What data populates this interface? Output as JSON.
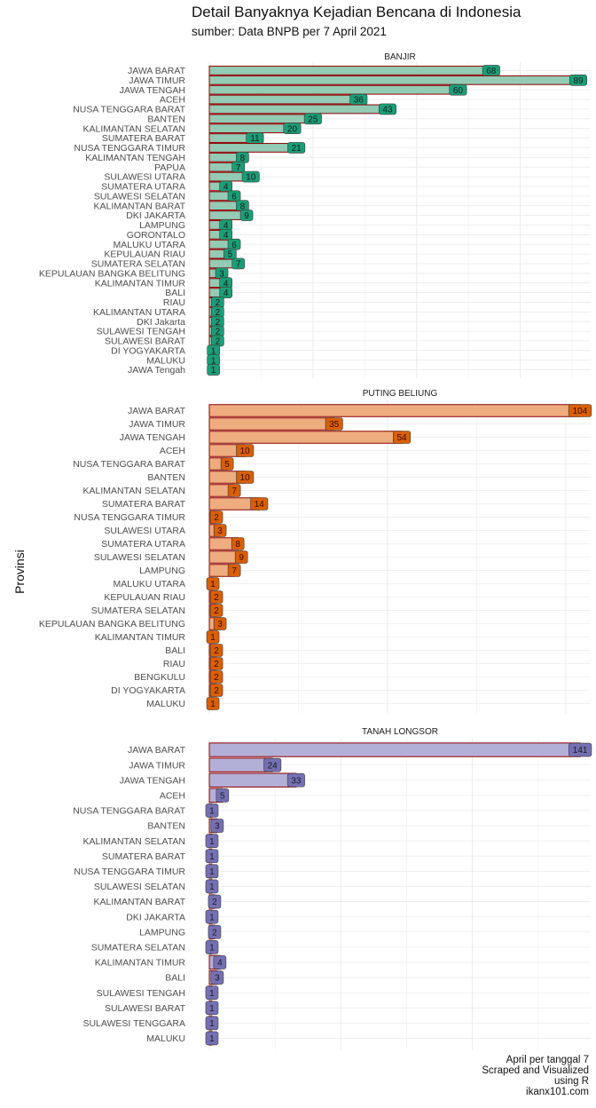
{
  "title": "Detail Banyaknya Kejadian Bencana di Indonesia",
  "subtitle": "sumber: Data BNPB per 7 April 2021",
  "y_axis_label": "Provinsi",
  "caption": [
    "April per tanggal 7",
    "Scraped and Visualized",
    "using R",
    "ikanx101.com"
  ],
  "colors": {
    "banjir_fill": "#93CBB4",
    "banjir_label": "#1B9E77",
    "banjir_text": "#1a1a1a",
    "puting_fill": "#EEAD7F",
    "puting_label": "#D95F02",
    "puting_text": "#3a0a00",
    "longsor_fill": "#B3B0D8",
    "longsor_label": "#7570B3",
    "longsor_text": "#1a1a1a",
    "bar_outline": "#8B0000",
    "grid": "#EBEBEB"
  },
  "chart_data": [
    {
      "type": "bar",
      "orientation": "horizontal",
      "title": "BANJIR",
      "xlabel": "",
      "ylabel": "Provinsi",
      "xlim": [
        0,
        92
      ],
      "categories": [
        "JAWA BARAT",
        "JAWA TIMUR",
        "JAWA TENGAH",
        "ACEH",
        "NUSA TENGGARA BARAT",
        "BANTEN",
        "KALIMANTAN SELATAN",
        "SUMATERA BARAT",
        "NUSA TENGGARA TIMUR",
        "KALIMANTAN TENGAH",
        "PAPUA",
        "SULAWESI UTARA",
        "SUMATERA UTARA",
        "SULAWESI SELATAN",
        "KALIMANTAN BARAT",
        "DKI JAKARTA",
        "LAMPUNG",
        "GORONTALO",
        "MALUKU UTARA",
        "KEPULAUAN RIAU",
        "SUMATERA SELATAN",
        "KEPULAUAN BANGKA BELITUNG",
        "KALIMANTAN TIMUR",
        "BALI",
        "RIAU",
        "KALIMANTAN UTARA",
        "DKI Jakarta",
        "SULAWESI TENGAH",
        "SULAWESI BARAT",
        "DI YOGYAKARTA",
        "MALUKU",
        "JAWA Tengah"
      ],
      "values": [
        68,
        89,
        60,
        36,
        43,
        25,
        20,
        11,
        21,
        8,
        7,
        10,
        4,
        6,
        8,
        9,
        4,
        4,
        6,
        5,
        7,
        3,
        4,
        4,
        2,
        2,
        2,
        2,
        2,
        1,
        1,
        1
      ]
    },
    {
      "type": "bar",
      "orientation": "horizontal",
      "title": "PUTING BELIUNG",
      "xlabel": "",
      "ylabel": "Provinsi",
      "xlim": [
        0,
        107
      ],
      "categories": [
        "JAWA BARAT",
        "JAWA TIMUR",
        "JAWA TENGAH",
        "ACEH",
        "NUSA TENGGARA BARAT",
        "BANTEN",
        "KALIMANTAN SELATAN",
        "SUMATERA BARAT",
        "NUSA TENGGARA TIMUR",
        "SULAWESI UTARA",
        "SUMATERA UTARA",
        "SULAWESI SELATAN",
        "LAMPUNG",
        "MALUKU UTARA",
        "KEPULAUAN RIAU",
        "SUMATERA SELATAN",
        "KEPULAUAN BANGKA BELITUNG",
        "KALIMANTAN TIMUR",
        "BALI",
        "RIAU",
        "BENGKULU",
        "DI YOGYAKARTA",
        "MALUKU"
      ],
      "values": [
        104,
        35,
        54,
        10,
        5,
        10,
        7,
        14,
        2,
        3,
        8,
        9,
        7,
        1,
        2,
        2,
        3,
        1,
        2,
        2,
        2,
        2,
        1
      ]
    },
    {
      "type": "bar",
      "orientation": "horizontal",
      "title": "TANAH LONGSOR",
      "xlabel": "",
      "ylabel": "Provinsi",
      "xlim": [
        0,
        145
      ],
      "categories": [
        "JAWA BARAT",
        "JAWA TIMUR",
        "JAWA TENGAH",
        "ACEH",
        "NUSA TENGGARA BARAT",
        "BANTEN",
        "KALIMANTAN SELATAN",
        "SUMATERA BARAT",
        "NUSA TENGGARA TIMUR",
        "SULAWESI SELATAN",
        "KALIMANTAN BARAT",
        "DKI JAKARTA",
        "LAMPUNG",
        "SUMATERA SELATAN",
        "KALIMANTAN TIMUR",
        "BALI",
        "SULAWESI TENGAH",
        "SULAWESI BARAT",
        "SULAWESI TENGGARA",
        "MALUKU"
      ],
      "values": [
        141,
        24,
        33,
        5,
        1,
        3,
        1,
        1,
        1,
        1,
        2,
        1,
        2,
        1,
        4,
        3,
        1,
        1,
        1,
        1
      ]
    }
  ]
}
